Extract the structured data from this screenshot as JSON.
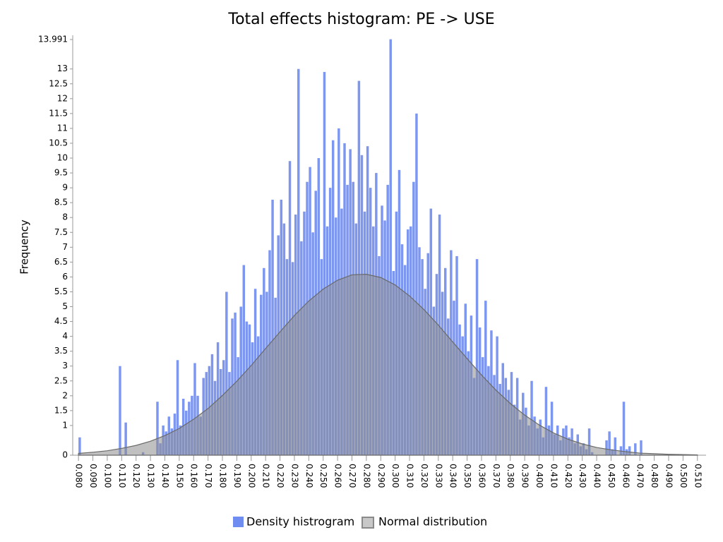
{
  "chart_data": {
    "type": "histogram",
    "title": "Total effects histogram: PE -> USE",
    "ylabel": "Frequency",
    "name": "Density histrogram",
    "color": "#6f8cf0",
    "bins": [
      0.08,
      0.082,
      0.084,
      0.086,
      0.088,
      0.09,
      0.092,
      0.094,
      0.096,
      0.098,
      0.1,
      0.102,
      0.104,
      0.106,
      0.108,
      0.11,
      0.112,
      0.114,
      0.116,
      0.118,
      0.12,
      0.122,
      0.124,
      0.126,
      0.128,
      0.13,
      0.132,
      0.134,
      0.136,
      0.138,
      0.14,
      0.142,
      0.144,
      0.146,
      0.148,
      0.15,
      0.152,
      0.154,
      0.156,
      0.158,
      0.16,
      0.162,
      0.164,
      0.166,
      0.168,
      0.17,
      0.172,
      0.174,
      0.176,
      0.178,
      0.18,
      0.182,
      0.184,
      0.186,
      0.188,
      0.19,
      0.192,
      0.194,
      0.196,
      0.198,
      0.2,
      0.202,
      0.204,
      0.206,
      0.208,
      0.21,
      0.212,
      0.214,
      0.216,
      0.218,
      0.22,
      0.222,
      0.224,
      0.226,
      0.228,
      0.23,
      0.232,
      0.234,
      0.236,
      0.238,
      0.24,
      0.242,
      0.244,
      0.246,
      0.248,
      0.25,
      0.252,
      0.254,
      0.256,
      0.258,
      0.26,
      0.262,
      0.264,
      0.266,
      0.268,
      0.27,
      0.272,
      0.274,
      0.276,
      0.278,
      0.28,
      0.282,
      0.284,
      0.286,
      0.288,
      0.29,
      0.292,
      0.294,
      0.296,
      0.298,
      0.3,
      0.302,
      0.304,
      0.306,
      0.308,
      0.31,
      0.312,
      0.314,
      0.316,
      0.318,
      0.32,
      0.322,
      0.324,
      0.326,
      0.328,
      0.33,
      0.332,
      0.334,
      0.336,
      0.338,
      0.34,
      0.342,
      0.344,
      0.346,
      0.348,
      0.35,
      0.352,
      0.354,
      0.356,
      0.358,
      0.36,
      0.362,
      0.364,
      0.366,
      0.368,
      0.37,
      0.372,
      0.374,
      0.376,
      0.378,
      0.38,
      0.382,
      0.384,
      0.386,
      0.388,
      0.39,
      0.392,
      0.394,
      0.396,
      0.398,
      0.4,
      0.402,
      0.404,
      0.406,
      0.408,
      0.41,
      0.412,
      0.414,
      0.416,
      0.418,
      0.42,
      0.422,
      0.424,
      0.426,
      0.428,
      0.43,
      0.432,
      0.434,
      0.436,
      0.438,
      0.44,
      0.442,
      0.444,
      0.446,
      0.448,
      0.45,
      0.452,
      0.454,
      0.456,
      0.458,
      0.46,
      0.462,
      0.464,
      0.466,
      0.468,
      0.47,
      0.472,
      0.474,
      0.476,
      0.478,
      0.48
    ],
    "counts": [
      0.6,
      0,
      0,
      0,
      0,
      0,
      0,
      0,
      0,
      0,
      0,
      0,
      0,
      0,
      3.0,
      0,
      1.1,
      0,
      0,
      0,
      0,
      0,
      0.1,
      0,
      0,
      0,
      0,
      1.8,
      0.4,
      1.0,
      0.8,
      1.3,
      0.9,
      1.4,
      3.2,
      1.0,
      1.9,
      1.5,
      1.8,
      2.0,
      3.1,
      2.0,
      1.3,
      2.6,
      2.8,
      3.0,
      3.4,
      2.5,
      3.8,
      2.9,
      3.2,
      5.5,
      2.8,
      4.6,
      4.8,
      3.3,
      5.0,
      6.4,
      4.5,
      4.4,
      3.8,
      5.6,
      4.0,
      5.4,
      6.3,
      5.5,
      6.9,
      8.6,
      5.3,
      7.4,
      8.6,
      7.8,
      6.6,
      9.9,
      6.5,
      8.1,
      13.0,
      7.2,
      8.2,
      9.2,
      9.7,
      7.5,
      8.9,
      10.0,
      6.6,
      12.9,
      7.7,
      9.0,
      10.6,
      8.0,
      11.0,
      8.3,
      10.5,
      9.1,
      10.3,
      9.2,
      7.8,
      12.6,
      10.1,
      8.2,
      10.4,
      9.0,
      7.7,
      9.5,
      6.7,
      8.4,
      7.9,
      9.1,
      14.0,
      6.2,
      8.2,
      9.6,
      7.1,
      6.4,
      7.6,
      7.7,
      9.2,
      11.5,
      7.0,
      6.6,
      5.6,
      6.8,
      8.3,
      5.0,
      6.1,
      8.1,
      5.5,
      6.3,
      4.6,
      6.9,
      5.2,
      6.7,
      4.4,
      4.0,
      5.1,
      3.5,
      4.7,
      2.6,
      6.6,
      4.3,
      3.3,
      5.2,
      3.0,
      4.2,
      2.7,
      4.0,
      2.4,
      3.1,
      2.6,
      2.2,
      2.8,
      1.7,
      2.6,
      1.2,
      2.1,
      1.6,
      1.0,
      2.5,
      1.3,
      0.9,
      1.2,
      0.6,
      2.3,
      1.0,
      1.8,
      0.7,
      1.0,
      0.5,
      0.9,
      1.0,
      0.6,
      0.9,
      0.4,
      0.7,
      0.3,
      0.4,
      0.2,
      0.9,
      0.1,
      0,
      0,
      0,
      0,
      0.5,
      0.8,
      0.2,
      0.6,
      0,
      0.3,
      1.8,
      0.2,
      0.3,
      0,
      0.4,
      0,
      0.5,
      0,
      0,
      0,
      0
    ],
    "curve": {
      "name": "Normal distribution",
      "color": "#8c8c8c",
      "x": [
        0.08,
        0.09,
        0.1,
        0.11,
        0.12,
        0.13,
        0.14,
        0.15,
        0.16,
        0.17,
        0.18,
        0.19,
        0.2,
        0.21,
        0.22,
        0.23,
        0.24,
        0.25,
        0.26,
        0.27,
        0.28,
        0.29,
        0.3,
        0.31,
        0.32,
        0.33,
        0.34,
        0.35,
        0.36,
        0.37,
        0.38,
        0.39,
        0.4,
        0.41,
        0.42,
        0.43,
        0.44,
        0.45,
        0.46,
        0.47,
        0.48,
        0.49,
        0.5,
        0.51
      ],
      "values": [
        0.06,
        0.1,
        0.15,
        0.23,
        0.33,
        0.47,
        0.66,
        0.9,
        1.21,
        1.57,
        2.01,
        2.49,
        3.02,
        3.59,
        4.15,
        4.7,
        5.19,
        5.59,
        5.89,
        6.07,
        6.09,
        5.98,
        5.73,
        5.36,
        4.9,
        4.38,
        3.81,
        3.25,
        2.7,
        2.19,
        1.74,
        1.35,
        1.02,
        0.75,
        0.54,
        0.38,
        0.26,
        0.18,
        0.12,
        0.07,
        0.05,
        0.03,
        0.02,
        0.01
      ]
    },
    "xlim": [
      0.076,
      0.516
    ],
    "xticks": [
      {
        "value": 0.08,
        "label": "0.080"
      },
      {
        "value": 0.09,
        "label": "0.090"
      },
      {
        "value": 0.1,
        "label": "0.100"
      },
      {
        "value": 0.11,
        "label": "0.110"
      },
      {
        "value": 0.12,
        "label": "0.120"
      },
      {
        "value": 0.13,
        "label": "0.130"
      },
      {
        "value": 0.14,
        "label": "0.140"
      },
      {
        "value": 0.15,
        "label": "0.150"
      },
      {
        "value": 0.16,
        "label": "0.160"
      },
      {
        "value": 0.17,
        "label": "0.170"
      },
      {
        "value": 0.18,
        "label": "0.180"
      },
      {
        "value": 0.19,
        "label": "0.190"
      },
      {
        "value": 0.2,
        "label": "0.200"
      },
      {
        "value": 0.21,
        "label": "0.210"
      },
      {
        "value": 0.22,
        "label": "0.220"
      },
      {
        "value": 0.23,
        "label": "0.230"
      },
      {
        "value": 0.24,
        "label": "0.240"
      },
      {
        "value": 0.25,
        "label": "0.250"
      },
      {
        "value": 0.26,
        "label": "0.260"
      },
      {
        "value": 0.27,
        "label": "0.270"
      },
      {
        "value": 0.28,
        "label": "0.280"
      },
      {
        "value": 0.29,
        "label": "0.290"
      },
      {
        "value": 0.3,
        "label": "0.300"
      },
      {
        "value": 0.31,
        "label": "0.310"
      },
      {
        "value": 0.32,
        "label": "0.320"
      },
      {
        "value": 0.33,
        "label": "0.330"
      },
      {
        "value": 0.34,
        "label": "0.340"
      },
      {
        "value": 0.35,
        "label": "0.350"
      },
      {
        "value": 0.36,
        "label": "0.360"
      },
      {
        "value": 0.37,
        "label": "0.370"
      },
      {
        "value": 0.38,
        "label": "0.380"
      },
      {
        "value": 0.39,
        "label": "0.390"
      },
      {
        "value": 0.4,
        "label": "0.400"
      },
      {
        "value": 0.41,
        "label": "0.410"
      },
      {
        "value": 0.42,
        "label": "0.420"
      },
      {
        "value": 0.43,
        "label": "0.430"
      },
      {
        "value": 0.44,
        "label": "0.440"
      },
      {
        "value": 0.45,
        "label": "0.450"
      },
      {
        "value": 0.46,
        "label": "0.460"
      },
      {
        "value": 0.47,
        "label": "0.470"
      },
      {
        "value": 0.48,
        "label": "0.480"
      },
      {
        "value": 0.49,
        "label": "0.490"
      },
      {
        "value": 0.5,
        "label": "0.500"
      },
      {
        "value": 0.51,
        "label": "0.510"
      }
    ],
    "ylim": [
      0,
      13.991
    ],
    "yticks": [
      0,
      1,
      1.5,
      2,
      2.5,
      3,
      3.5,
      4,
      4.5,
      5,
      5.5,
      6,
      6.5,
      7,
      7.5,
      8,
      8.5,
      9,
      9.5,
      10,
      10.5,
      11,
      11.5,
      12,
      12.5,
      13,
      13.991
    ],
    "legend": "bottom"
  }
}
